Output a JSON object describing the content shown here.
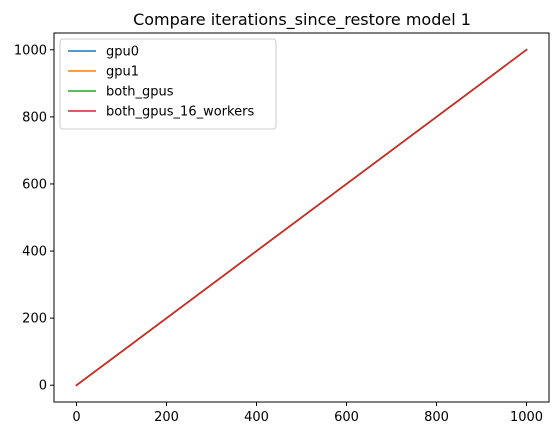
{
  "chart_data": {
    "type": "line",
    "title": "Compare iterations_since_restore model 1",
    "xlabel": "",
    "ylabel": "",
    "xlim": [
      -50,
      1050
    ],
    "ylim": [
      -50,
      1050
    ],
    "xticks": [
      0,
      200,
      400,
      600,
      800,
      1000
    ],
    "yticks": [
      0,
      200,
      400,
      600,
      800,
      1000
    ],
    "grid": false,
    "legend_position": "top-left",
    "series": [
      {
        "name": "gpu0",
        "color": "#1f77b4",
        "x": [
          0,
          1000
        ],
        "y": [
          0,
          1000
        ]
      },
      {
        "name": "gpu1",
        "color": "#ff7f0e",
        "x": [
          0,
          1000
        ],
        "y": [
          0,
          1000
        ]
      },
      {
        "name": "both_gpus",
        "color": "#2ca02c",
        "x": [
          0,
          1000
        ],
        "y": [
          0,
          1000
        ]
      },
      {
        "name": "both_gpus_16_workers",
        "color": "#d62728",
        "x": [
          0,
          1000
        ],
        "y": [
          0,
          1000
        ]
      }
    ]
  }
}
